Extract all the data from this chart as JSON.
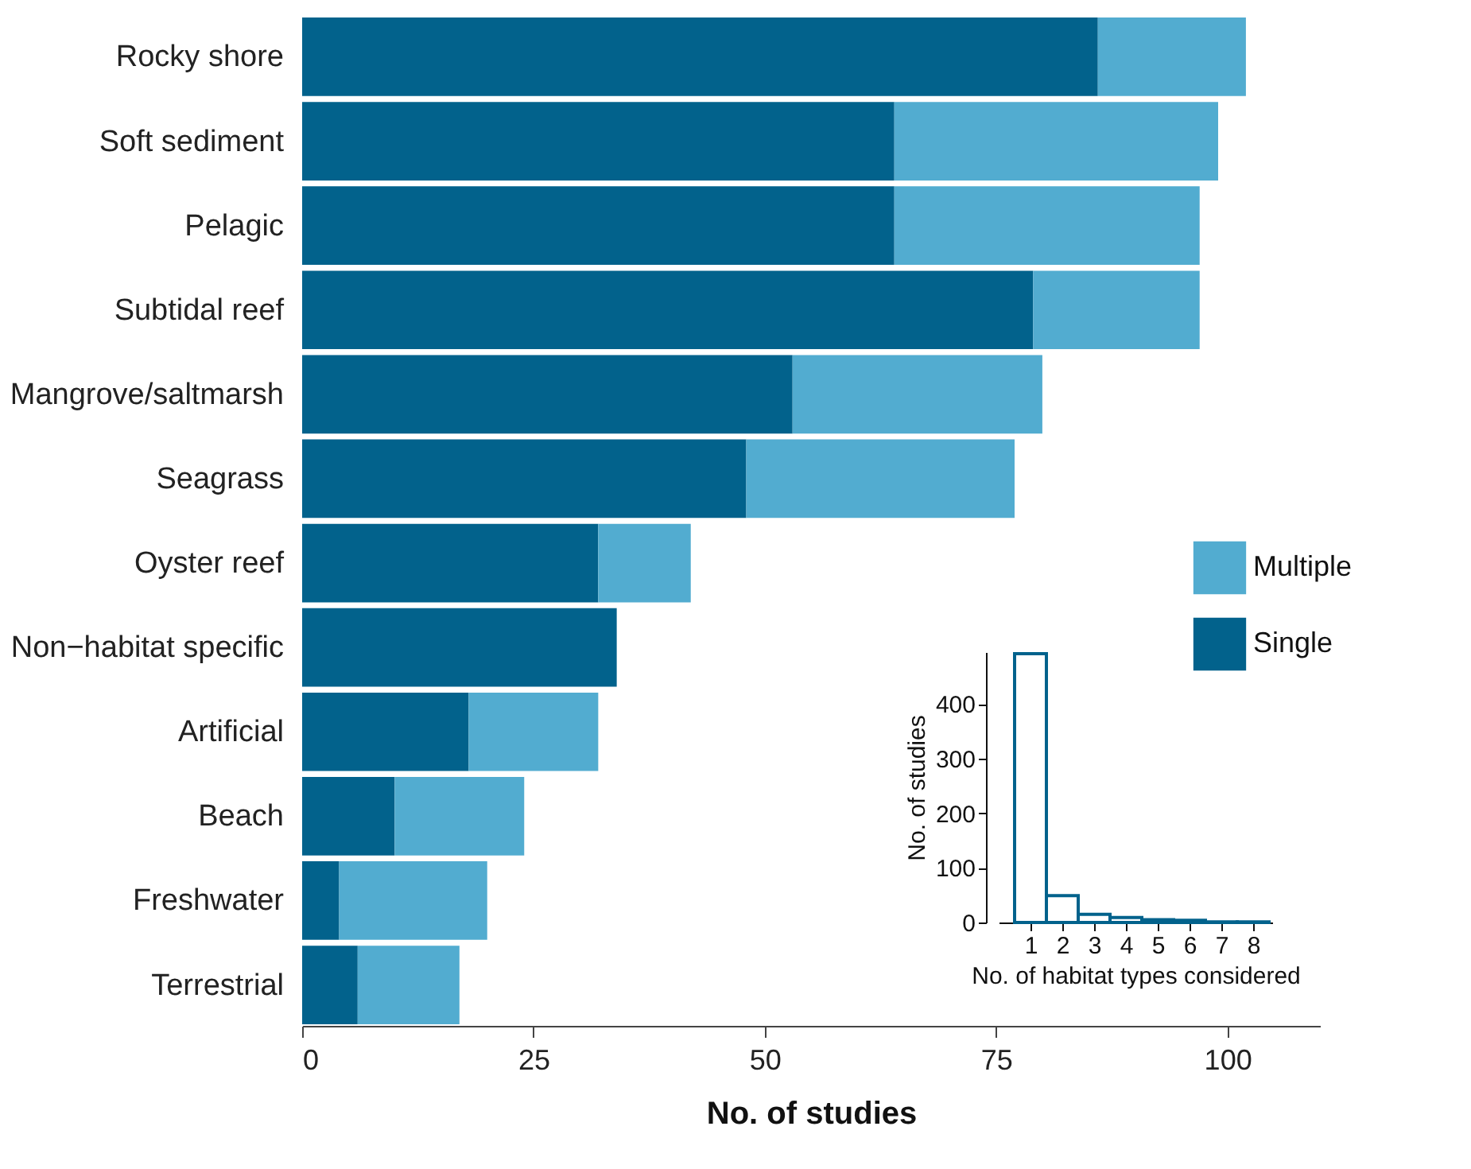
{
  "chart_data": [
    {
      "type": "bar",
      "orientation": "horizontal",
      "stacked": true,
      "xlabel": "No. of studies",
      "categories": [
        "Rocky shore",
        "Soft sediment",
        "Pelagic",
        "Subtidal reef",
        "Mangrove/saltmarsh",
        "Seagrass",
        "Oyster reef",
        "Non−habitat specific",
        "Artificial",
        "Beach",
        "Freshwater",
        "Terrestrial"
      ],
      "series": [
        {
          "name": "Single",
          "color": "#02628c",
          "values": [
            86,
            64,
            64,
            79,
            53,
            48,
            32,
            34,
            18,
            10,
            4,
            6
          ]
        },
        {
          "name": "Multiple",
          "color": "#52acd0",
          "values": [
            16,
            35,
            33,
            18,
            27,
            29,
            10,
            0,
            14,
            14,
            16,
            11
          ]
        }
      ],
      "xlim": [
        0,
        110
      ],
      "xticks": [
        0,
        25,
        50,
        75,
        100
      ],
      "legend": "right"
    },
    {
      "type": "histogram",
      "xlabel": "No. of habitat types considered",
      "ylabel": "No. of studies",
      "color": "#02628c",
      "bins": [
        0.5,
        1.5,
        2.5,
        3.5,
        4.5,
        5.5,
        6.5,
        7.5,
        8.5
      ],
      "values": [
        492,
        49,
        15,
        9,
        5,
        4,
        1,
        1
      ],
      "xlim": [
        0,
        8.6
      ],
      "xticks": [
        1,
        2,
        3,
        4,
        5,
        6,
        7,
        8
      ],
      "ylim": [
        0,
        495
      ],
      "yticks": [
        0,
        100,
        200,
        300,
        400
      ]
    }
  ]
}
